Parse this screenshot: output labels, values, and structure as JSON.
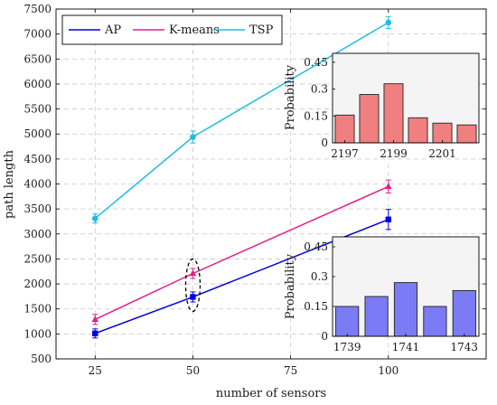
{
  "chart_data": [
    {
      "type": "line",
      "xlabel": "number of sensors",
      "ylabel": "path length",
      "x": [
        25,
        50,
        100
      ],
      "xticks": [
        "25",
        "50",
        "75",
        "100"
      ],
      "xtick_values": [
        25,
        50,
        75,
        100
      ],
      "xlim": [
        15,
        125
      ],
      "ylim": [
        500,
        7500
      ],
      "yticks": [
        "500",
        "1000",
        "1500",
        "2000",
        "2500",
        "3000",
        "3500",
        "4000",
        "4500",
        "5000",
        "5500",
        "6000",
        "6500",
        "7000",
        "7500"
      ],
      "ytick_values": [
        500,
        1000,
        1500,
        2000,
        2500,
        3000,
        3500,
        4000,
        4500,
        5000,
        5500,
        6000,
        6500,
        7000,
        7500
      ],
      "grid": true,
      "legend_position": "top-left",
      "series": [
        {
          "name": "AP",
          "color": "#0000e0",
          "marker": "square",
          "values": [
            1010,
            1740,
            3290
          ],
          "errors": [
            90,
            100,
            200
          ]
        },
        {
          "name": "K-means",
          "color": "#e0208a",
          "marker": "triangle",
          "values": [
            1290,
            2210,
            3950
          ],
          "errors": [
            100,
            100,
            130
          ]
        },
        {
          "name": "TSP",
          "color": "#20bde0",
          "marker": "circle",
          "values": [
            3310,
            4940,
            7230
          ],
          "errors": [
            90,
            120,
            120
          ]
        }
      ],
      "annotation": {
        "type": "dashed-ellipse",
        "x": 50
      }
    },
    {
      "type": "bar",
      "ylabel": "Probability",
      "color": "#f08080",
      "categories": [
        2197,
        2198,
        2199,
        2200,
        2201,
        2202
      ],
      "values": [
        0.155,
        0.27,
        0.33,
        0.14,
        0.11,
        0.1
      ],
      "xticks": [
        "2197",
        "2199",
        "2201"
      ],
      "xtick_values": [
        2197,
        2199,
        2201
      ],
      "xlim": [
        2196.5,
        2202.5
      ],
      "ylim": [
        0,
        0.5
      ],
      "yticks": [
        "0",
        "0.15",
        "0.3",
        "0.45"
      ],
      "ytick_values": [
        0,
        0.15,
        0.3,
        0.45
      ]
    },
    {
      "type": "bar",
      "ylabel": "Probability",
      "color": "#7b7bf5",
      "categories": [
        1739,
        1740,
        1741,
        1742,
        1743
      ],
      "values": [
        0.15,
        0.2,
        0.27,
        0.15,
        0.23
      ],
      "xticks": [
        "1739",
        "1741",
        "1743"
      ],
      "xtick_values": [
        1739,
        1741,
        1743
      ],
      "xlim": [
        1738.5,
        1743.5
      ],
      "ylim": [
        0,
        0.5
      ],
      "yticks": [
        "0",
        "0.15",
        "0.3",
        "0.45"
      ],
      "ytick_values": [
        0,
        0.15,
        0.3,
        0.45
      ]
    }
  ]
}
